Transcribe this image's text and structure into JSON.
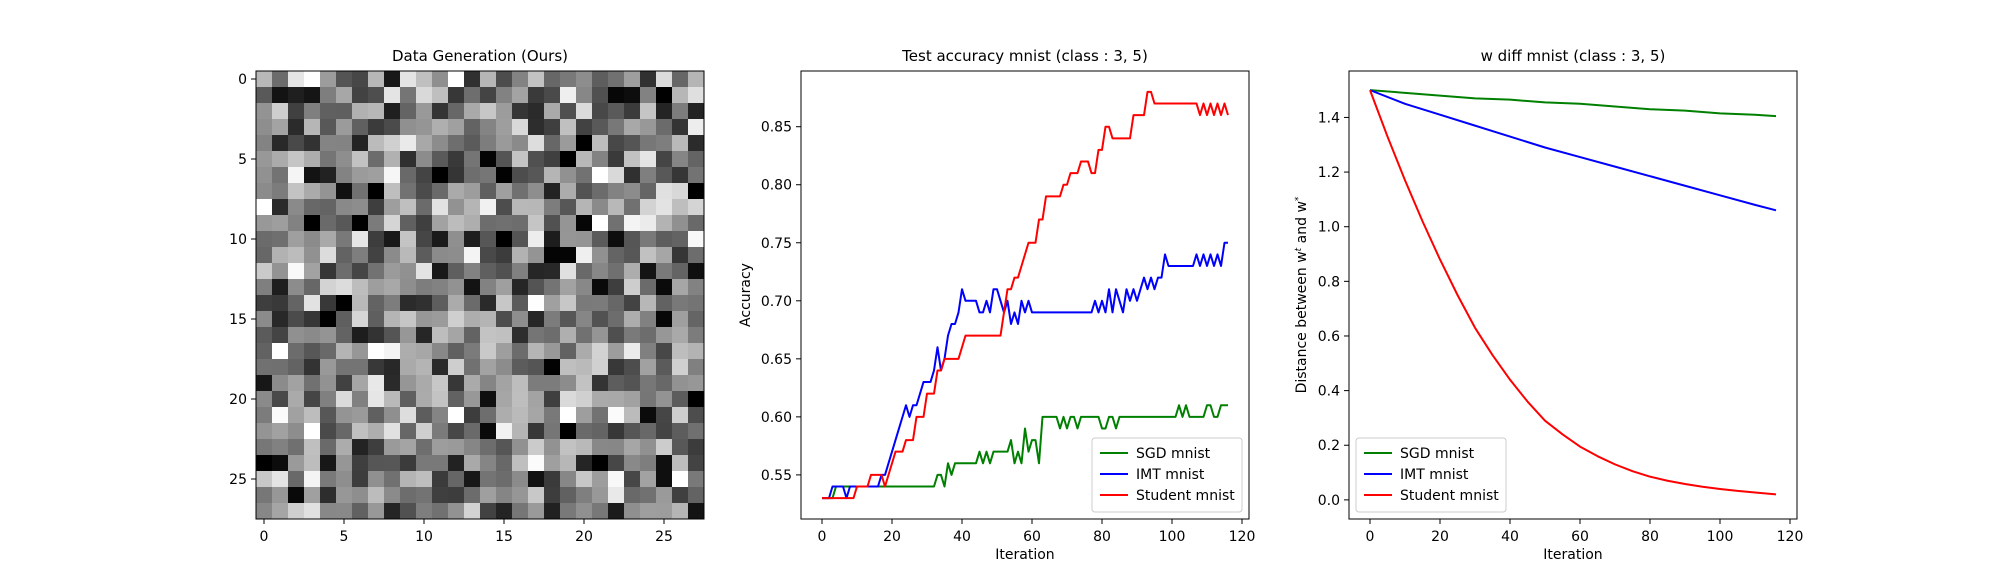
{
  "chart_data": [
    {
      "type": "heatmap",
      "title": "Data Generation (Ours)",
      "colormap": "gray",
      "rows": 28,
      "cols": 28,
      "xlim": [
        -0.5,
        27.5
      ],
      "ylim": [
        27.5,
        -0.5
      ],
      "xticks": [
        0,
        5,
        10,
        15,
        20,
        25
      ],
      "yticks": [
        0,
        5,
        10,
        15,
        20,
        25
      ]
    },
    {
      "type": "line",
      "title": "Test accuracy mnist (class : 3, 5)",
      "xlabel": "Iteration",
      "ylabel": "Accuracy",
      "xlim": [
        -6,
        122
      ],
      "ylim": [
        0.512,
        0.898
      ],
      "xticks": [
        0,
        20,
        40,
        60,
        80,
        100,
        120
      ],
      "yticks": [
        0.55,
        0.6,
        0.65,
        0.7,
        0.75,
        0.8,
        0.85
      ],
      "yticklabels": [
        "0.55",
        "0.60",
        "0.65",
        "0.70",
        "0.75",
        "0.80",
        "0.85"
      ],
      "legend": "lower-right",
      "series": [
        {
          "name": "SGD mnist",
          "color": "#008000",
          "values": [
            0.53,
            0.53,
            0.53,
            0.53,
            0.54,
            0.54,
            0.54,
            0.54,
            0.54,
            0.54,
            0.54,
            0.54,
            0.54,
            0.54,
            0.54,
            0.54,
            0.54,
            0.54,
            0.54,
            0.54,
            0.54,
            0.54,
            0.54,
            0.54,
            0.54,
            0.54,
            0.54,
            0.54,
            0.54,
            0.54,
            0.54,
            0.54,
            0.54,
            0.55,
            0.55,
            0.54,
            0.56,
            0.55,
            0.56,
            0.56,
            0.56,
            0.56,
            0.56,
            0.56,
            0.56,
            0.57,
            0.56,
            0.57,
            0.56,
            0.57,
            0.57,
            0.57,
            0.57,
            0.57,
            0.58,
            0.56,
            0.57,
            0.56,
            0.59,
            0.57,
            0.58,
            0.58,
            0.56,
            0.6,
            0.6,
            0.6,
            0.6,
            0.6,
            0.59,
            0.6,
            0.59,
            0.6,
            0.6,
            0.59,
            0.6,
            0.6,
            0.6,
            0.6,
            0.6,
            0.6,
            0.59,
            0.59,
            0.6,
            0.6,
            0.59,
            0.6,
            0.6,
            0.6,
            0.6,
            0.6,
            0.6,
            0.6,
            0.6,
            0.6,
            0.6,
            0.6,
            0.6,
            0.6,
            0.6,
            0.6,
            0.6,
            0.6,
            0.61,
            0.6,
            0.61,
            0.6,
            0.6,
            0.6,
            0.6,
            0.6,
            0.61,
            0.61,
            0.6,
            0.6,
            0.61,
            0.61,
            0.61
          ]
        },
        {
          "name": "IMT mnist",
          "color": "#0000ff",
          "values": [
            0.53,
            0.53,
            0.53,
            0.54,
            0.54,
            0.54,
            0.54,
            0.53,
            0.54,
            0.54,
            0.54,
            0.54,
            0.54,
            0.54,
            0.54,
            0.54,
            0.54,
            0.55,
            0.55,
            0.56,
            0.57,
            0.58,
            0.59,
            0.6,
            0.61,
            0.6,
            0.61,
            0.61,
            0.62,
            0.63,
            0.63,
            0.63,
            0.64,
            0.66,
            0.64,
            0.65,
            0.67,
            0.68,
            0.68,
            0.69,
            0.71,
            0.7,
            0.7,
            0.7,
            0.7,
            0.69,
            0.69,
            0.7,
            0.69,
            0.71,
            0.71,
            0.7,
            0.69,
            0.7,
            0.68,
            0.69,
            0.68,
            0.7,
            0.69,
            0.7,
            0.69,
            0.69,
            0.69,
            0.69,
            0.69,
            0.69,
            0.69,
            0.69,
            0.69,
            0.69,
            0.69,
            0.69,
            0.69,
            0.69,
            0.69,
            0.69,
            0.69,
            0.69,
            0.7,
            0.69,
            0.7,
            0.69,
            0.71,
            0.69,
            0.71,
            0.7,
            0.69,
            0.71,
            0.7,
            0.71,
            0.7,
            0.71,
            0.72,
            0.71,
            0.72,
            0.71,
            0.72,
            0.72,
            0.74,
            0.73,
            0.73,
            0.73,
            0.73,
            0.73,
            0.73,
            0.73,
            0.73,
            0.74,
            0.73,
            0.74,
            0.73,
            0.74,
            0.73,
            0.74,
            0.73,
            0.75,
            0.75
          ]
        },
        {
          "name": "Student mnist",
          "color": "#ff0000",
          "values": [
            0.53,
            0.53,
            0.53,
            0.53,
            0.53,
            0.53,
            0.53,
            0.53,
            0.53,
            0.53,
            0.54,
            0.54,
            0.54,
            0.54,
            0.55,
            0.55,
            0.55,
            0.55,
            0.54,
            0.55,
            0.56,
            0.57,
            0.57,
            0.57,
            0.58,
            0.58,
            0.58,
            0.6,
            0.6,
            0.6,
            0.62,
            0.62,
            0.62,
            0.64,
            0.64,
            0.65,
            0.65,
            0.65,
            0.65,
            0.65,
            0.66,
            0.67,
            0.67,
            0.67,
            0.67,
            0.67,
            0.67,
            0.67,
            0.67,
            0.67,
            0.67,
            0.67,
            0.69,
            0.71,
            0.71,
            0.72,
            0.72,
            0.73,
            0.74,
            0.75,
            0.75,
            0.75,
            0.77,
            0.77,
            0.79,
            0.79,
            0.79,
            0.79,
            0.79,
            0.8,
            0.8,
            0.81,
            0.81,
            0.81,
            0.82,
            0.82,
            0.82,
            0.81,
            0.81,
            0.83,
            0.83,
            0.85,
            0.85,
            0.84,
            0.84,
            0.84,
            0.84,
            0.84,
            0.84,
            0.86,
            0.86,
            0.86,
            0.86,
            0.88,
            0.88,
            0.87,
            0.87,
            0.87,
            0.87,
            0.87,
            0.87,
            0.87,
            0.87,
            0.87,
            0.87,
            0.87,
            0.87,
            0.87,
            0.86,
            0.87,
            0.86,
            0.87,
            0.86,
            0.87,
            0.86,
            0.87,
            0.86
          ]
        }
      ]
    },
    {
      "type": "line",
      "title": "w diff mnist (class : 3, 5)",
      "xlabel": "Iteration",
      "ylabel": "Distance between w",
      "ylabel_sup1": "t",
      "ylabel_mid": " and w",
      "ylabel_sup2": "*",
      "xlim": [
        -6,
        122
      ],
      "ylim": [
        -0.07,
        1.57
      ],
      "xticks": [
        0,
        20,
        40,
        60,
        80,
        100,
        120
      ],
      "yticks": [
        0.0,
        0.2,
        0.4,
        0.6,
        0.8,
        1.0,
        1.2,
        1.4
      ],
      "yticklabels": [
        "0.0",
        "0.2",
        "0.4",
        "0.6",
        "0.8",
        "1.0",
        "1.2",
        "1.4"
      ],
      "legend": "lower-left",
      "series": [
        {
          "name": "SGD mnist",
          "color": "#008000",
          "x": [
            0,
            10,
            20,
            30,
            40,
            50,
            60,
            70,
            80,
            90,
            100,
            110,
            116
          ],
          "values": [
            1.5,
            1.49,
            1.48,
            1.47,
            1.465,
            1.455,
            1.45,
            1.44,
            1.43,
            1.425,
            1.415,
            1.41,
            1.405
          ]
        },
        {
          "name": "IMT mnist",
          "color": "#0000ff",
          "x": [
            0,
            10,
            20,
            30,
            40,
            50,
            60,
            70,
            80,
            90,
            100,
            110,
            116
          ],
          "values": [
            1.5,
            1.45,
            1.41,
            1.37,
            1.33,
            1.29,
            1.255,
            1.22,
            1.185,
            1.15,
            1.115,
            1.08,
            1.06
          ]
        },
        {
          "name": "Student mnist",
          "color": "#ff0000",
          "x": [
            0,
            5,
            10,
            15,
            20,
            25,
            30,
            35,
            40,
            45,
            50,
            55,
            60,
            65,
            70,
            75,
            80,
            85,
            90,
            95,
            100,
            105,
            110,
            116
          ],
          "values": [
            1.5,
            1.33,
            1.17,
            1.02,
            0.88,
            0.75,
            0.63,
            0.53,
            0.44,
            0.36,
            0.29,
            0.24,
            0.195,
            0.16,
            0.13,
            0.105,
            0.085,
            0.07,
            0.058,
            0.048,
            0.04,
            0.033,
            0.027,
            0.02
          ]
        }
      ]
    }
  ]
}
